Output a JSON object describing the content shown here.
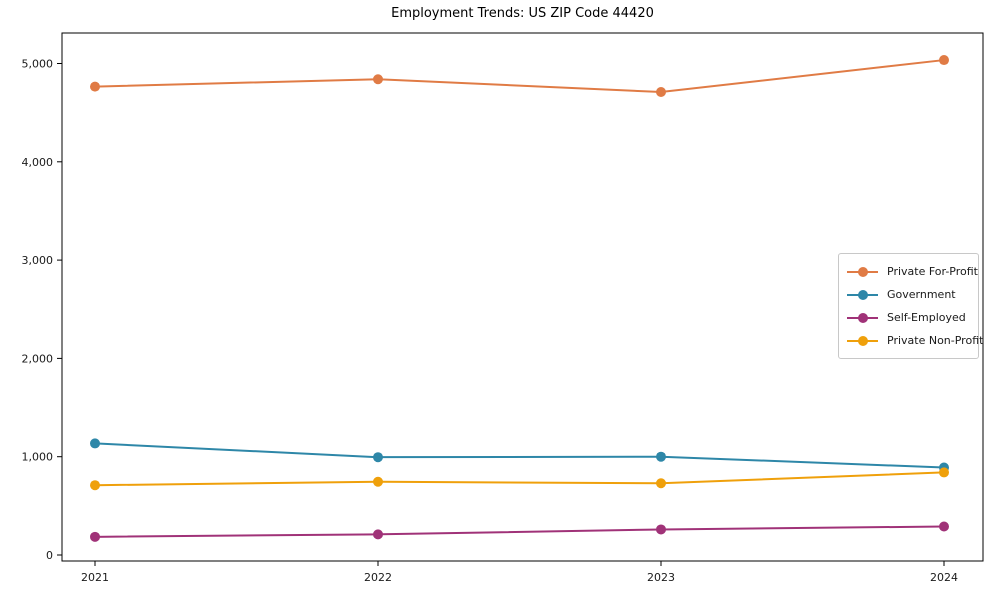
{
  "chart_data": {
    "type": "line",
    "title": "Employment Trends: US ZIP Code 44420",
    "categories": [
      "2021",
      "2022",
      "2023",
      "2024"
    ],
    "series": [
      {
        "name": "Private For-Profit",
        "color": "#E07B45",
        "values": [
          4765,
          4840,
          4710,
          5035
        ]
      },
      {
        "name": "Government",
        "color": "#2E87A8",
        "values": [
          1135,
          995,
          1000,
          890
        ]
      },
      {
        "name": "Self-Employed",
        "color": "#A03278",
        "values": [
          185,
          210,
          260,
          290
        ]
      },
      {
        "name": "Private Non-Profit",
        "color": "#EFA00B",
        "values": [
          710,
          745,
          730,
          840
        ]
      }
    ],
    "xlabel": "",
    "ylabel": "",
    "ylim": [
      -60,
      5310
    ],
    "yticks": [
      0,
      1000,
      2000,
      3000,
      4000,
      5000
    ],
    "grid": false,
    "marker": "circle",
    "legend_position": "center right"
  }
}
